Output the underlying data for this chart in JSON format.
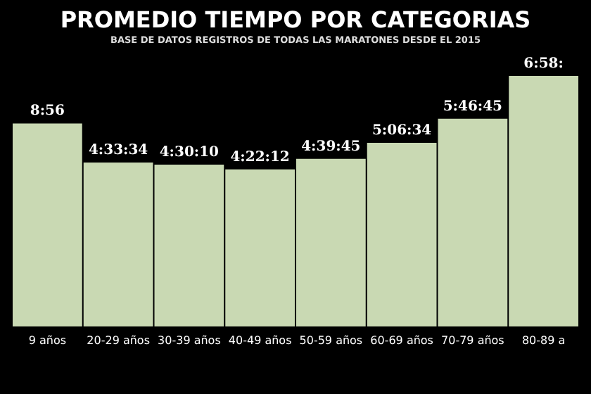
{
  "chart_data": {
    "type": "bar",
    "title": "PROMEDIO TIEMPO POR CATEGORIAS",
    "subtitle": "BASE DE DATOS REGISTROS DE TODAS LAS MARATONES DESDE EL 2015",
    "categories": [
      "9 años",
      "20-29 años",
      "30-39 años",
      "40-49 años",
      "50-59 años",
      "60-69 años",
      "70-79 años",
      "80-89 a"
    ],
    "values": [
      5.65,
      4.5594,
      4.5028,
      4.37,
      4.6625,
      5.1094,
      5.7792,
      6.97
    ],
    "value_labels": [
      null,
      "4:33:34",
      "4:30:10",
      "4:22:12",
      "4:39:45",
      "5:06:34",
      "5:46:45",
      "6:58:"
    ],
    "annotations": [
      {
        "text": "8:56",
        "x": "9 años",
        "y": 5.65
      }
    ],
    "color": "#c9d9b3",
    "tick_labels": "x"
  }
}
